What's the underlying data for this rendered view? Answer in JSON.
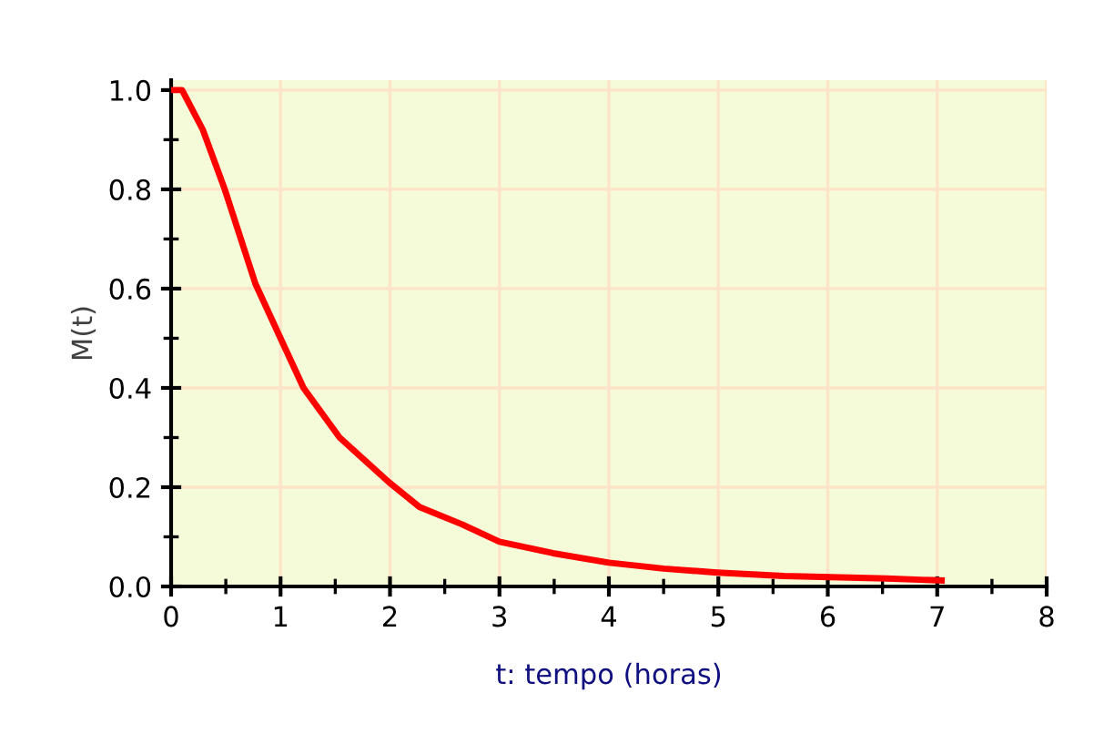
{
  "chart_data": {
    "type": "line",
    "xlabel": "t: tempo (horas)",
    "ylabel": "M(t)",
    "x": [
      0,
      0.1,
      0.29,
      0.49,
      0.77,
      1.0,
      1.21,
      1.54,
      1.99,
      2.27,
      2.66,
      3.0,
      3.49,
      4.0,
      4.5,
      4.99,
      5.6,
      6.54,
      7.04
    ],
    "series": [
      {
        "color": "#ff0000",
        "values": [
          1.0,
          1.0,
          0.92,
          0.8,
          0.61,
          0.5,
          0.4,
          0.3,
          0.21,
          0.16,
          0.125,
          0.09,
          0.067,
          0.048,
          0.036,
          0.028,
          0.021,
          0.016,
          0.012
        ]
      }
    ],
    "xlim": [
      0,
      8
    ],
    "xticks": [
      0,
      1,
      2,
      3,
      4,
      5,
      6,
      7,
      8
    ],
    "ylim": [
      0,
      1.02
    ],
    "yticks": [
      {
        "value": 0,
        "label": "0.0"
      },
      0.2,
      0.4,
      0.6,
      0.8,
      {
        "value": 1,
        "label": "1.0"
      }
    ],
    "grid": true,
    "marker": "none",
    "line_style": "solid"
  }
}
